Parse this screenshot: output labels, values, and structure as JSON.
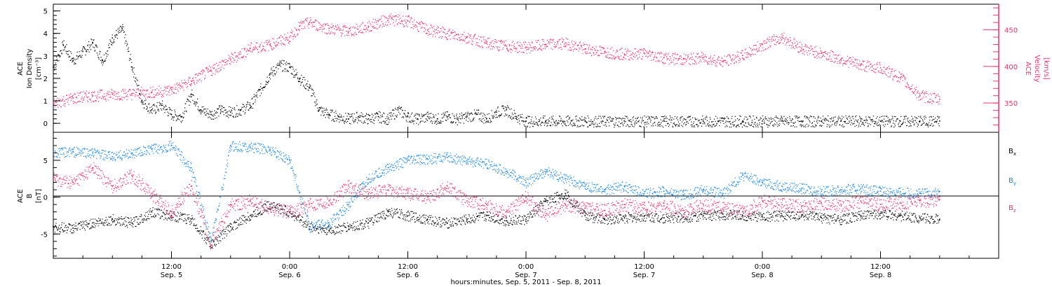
{
  "colors": {
    "black": "#000000",
    "magenta": "#e8336b",
    "blue": "#1a86e0"
  },
  "chart_data": [
    {
      "type": "scatter",
      "panel": "top",
      "xlabel": "hours:minutes, Sep.  5, 2011 - Sep.  8, 2011",
      "xlim_hours": [
        0,
        96
      ],
      "x_ticks": [
        {
          "hour": 12,
          "time": "12:00",
          "date": "Sep. 5"
        },
        {
          "hour": 24,
          "time": "0:00",
          "date": "Sep. 6"
        },
        {
          "hour": 36,
          "time": "12:00",
          "date": "Sep. 6"
        },
        {
          "hour": 48,
          "time": "0:00",
          "date": "Sep. 7"
        },
        {
          "hour": 60,
          "time": "12:00",
          "date": "Sep. 7"
        },
        {
          "hour": 72,
          "time": "0:00",
          "date": "Sep. 8"
        },
        {
          "hour": 84,
          "time": "12:00",
          "date": "Sep. 8"
        }
      ],
      "left_axis": {
        "label_lines": [
          "ACE",
          "Ion Density"
        ],
        "unit": "[cm⁻³]",
        "ylim": [
          -0.4,
          5.3
        ],
        "ticks": [
          "0",
          "1",
          "2",
          "3",
          "4",
          "5"
        ]
      },
      "right_axis": {
        "label_lines": [
          "ACE",
          "Velocity"
        ],
        "unit": "[km/s]",
        "ylim": [
          310,
          485
        ],
        "ticks": [
          "350",
          "400",
          "450"
        ]
      },
      "series": [
        {
          "axis": "left",
          "color": "#000000",
          "x": [
            0,
            1,
            2,
            3,
            4,
            5,
            6,
            7,
            8,
            9,
            10,
            11,
            12,
            13,
            14,
            15,
            16,
            17,
            18,
            19,
            20,
            21,
            22,
            23,
            24,
            25,
            26,
            27,
            28,
            29,
            30,
            31,
            32,
            33,
            34,
            35,
            36,
            37,
            38,
            39,
            40,
            41,
            42,
            43,
            44,
            45,
            46,
            47,
            48,
            50,
            54,
            58,
            62,
            66,
            68,
            70,
            72,
            74,
            76,
            78,
            80,
            82,
            84,
            86,
            88,
            90
          ],
          "y": [
            2.5,
            3.5,
            2.8,
            3.2,
            3.6,
            2.8,
            3.8,
            4.2,
            2.5,
            1.0,
            0.6,
            0.8,
            0.4,
            0.3,
            1.3,
            0.6,
            0.4,
            0.6,
            0.5,
            0.6,
            0.8,
            1.5,
            2.2,
            2.6,
            2.5,
            2.0,
            1.6,
            0.6,
            0.4,
            0.3,
            0.2,
            0.3,
            0.2,
            0.3,
            0.2,
            0.6,
            0.3,
            0.2,
            0.3,
            0.2,
            0.3,
            0.2,
            0.3,
            0.4,
            0.2,
            0.5,
            0.6,
            0.3,
            0.1,
            0.1,
            0.1,
            0.1,
            0.1,
            0.1,
            0.1,
            0.1,
            0.1,
            0.1,
            0.1,
            0.1,
            0.1,
            0.1,
            0.1,
            0.1,
            0.1,
            0.1
          ]
        },
        {
          "axis": "right",
          "color": "#e8336b",
          "x": [
            0,
            2,
            4,
            6,
            8,
            10,
            12,
            14,
            16,
            18,
            20,
            22,
            24,
            25,
            26,
            28,
            30,
            32,
            34,
            36,
            38,
            40,
            42,
            44,
            46,
            48,
            50,
            52,
            54,
            56,
            58,
            60,
            62,
            64,
            66,
            68,
            70,
            72,
            74,
            76,
            78,
            80,
            82,
            84,
            86,
            88,
            90
          ],
          "y": [
            350,
            357,
            360,
            362,
            363,
            365,
            368,
            380,
            395,
            410,
            425,
            430,
            440,
            455,
            460,
            452,
            448,
            455,
            465,
            462,
            450,
            445,
            440,
            432,
            428,
            426,
            430,
            432,
            424,
            420,
            417,
            418,
            412,
            410,
            412,
            407,
            415,
            430,
            440,
            425,
            418,
            410,
            402,
            398,
            385,
            360,
            355
          ]
        }
      ]
    },
    {
      "type": "scatter",
      "panel": "bottom",
      "left_axis": {
        "label_lines": [
          "ACE",
          "B"
        ],
        "unit": "[nT]",
        "ylim": [
          -8.3,
          8.8
        ],
        "ticks": [
          "-5",
          "0",
          "5"
        ]
      },
      "zero_line": true,
      "legend_position": "right",
      "series": [
        {
          "name": "Bx",
          "color": "#000000",
          "x": [
            0,
            2,
            4,
            6,
            8,
            10,
            12,
            14,
            16,
            18,
            20,
            22,
            24,
            26,
            28,
            30,
            32,
            34,
            36,
            38,
            40,
            42,
            44,
            46,
            48,
            50,
            52,
            54,
            56,
            58,
            60,
            62,
            64,
            66,
            68,
            70,
            72,
            74,
            76,
            78,
            80,
            82,
            84,
            86,
            88,
            90
          ],
          "y": [
            -4.0,
            -4.2,
            -3.5,
            -3.0,
            -3.5,
            -2.0,
            -2.5,
            -3.0,
            -6.5,
            -4.0,
            -2.5,
            -1.0,
            -2.0,
            -4.0,
            -4.5,
            -4.0,
            -3.5,
            -2.0,
            -2.5,
            -3.0,
            -3.5,
            -3.0,
            -2.5,
            -3.2,
            -3.0,
            -0.5,
            0.5,
            -2.5,
            -3.0,
            -2.8,
            -2.6,
            -2.8,
            -2.7,
            -2.5,
            -2.3,
            -2.5,
            -2.6,
            -2.5,
            -2.4,
            -2.8,
            -3.0,
            -2.5,
            -2.2,
            -2.5,
            -2.8,
            -3.0
          ]
        },
        {
          "name": "By",
          "color": "#1a86e0",
          "x": [
            0,
            2,
            4,
            6,
            8,
            10,
            12,
            14,
            16,
            18,
            20,
            22,
            24,
            26,
            28,
            30,
            32,
            34,
            36,
            38,
            40,
            42,
            44,
            46,
            48,
            50,
            52,
            54,
            56,
            58,
            60,
            62,
            64,
            66,
            68,
            70,
            72,
            74,
            76,
            78,
            80,
            82,
            84,
            86,
            88,
            90
          ],
          "y": [
            6.0,
            6.2,
            6.0,
            5.5,
            6.0,
            6.5,
            7.0,
            4.0,
            -6.0,
            7.0,
            6.8,
            6.5,
            5.0,
            -4.0,
            -3.5,
            -1.0,
            2.5,
            4.0,
            5.0,
            5.2,
            5.4,
            5.0,
            4.5,
            3.5,
            2.0,
            3.5,
            2.5,
            1.5,
            1.0,
            1.5,
            0.5,
            0.8,
            0.3,
            1.0,
            0.5,
            3.0,
            2.0,
            1.5,
            1.2,
            0.8,
            1.0,
            1.2,
            0.8,
            0.7,
            0.5,
            0.8
          ]
        },
        {
          "name": "Bz",
          "color": "#e8336b",
          "x": [
            0,
            2,
            4,
            6,
            8,
            10,
            12,
            14,
            16,
            18,
            20,
            22,
            24,
            26,
            28,
            30,
            32,
            34,
            36,
            38,
            40,
            42,
            44,
            46,
            48,
            50,
            52,
            54,
            56,
            58,
            60,
            62,
            64,
            66,
            68,
            70,
            72,
            74,
            76,
            78,
            80,
            82,
            84,
            86,
            88,
            90
          ],
          "y": [
            2.5,
            2.0,
            4.0,
            1.5,
            3.0,
            0.5,
            -2.0,
            1.5,
            -6.5,
            -1.0,
            -0.5,
            -1.5,
            -2.0,
            -1.0,
            -0.5,
            1.5,
            0.5,
            1.0,
            0.5,
            0.0,
            1.5,
            -0.5,
            -1.0,
            -2.0,
            0.0,
            -2.5,
            -1.0,
            -1.5,
            -1.8,
            -1.0,
            -1.5,
            -1.2,
            -1.8,
            -1.0,
            -1.5,
            -2.0,
            -0.5,
            -1.0,
            -1.2,
            -0.8,
            -1.2,
            -0.5,
            -1.0,
            -0.8,
            -0.5,
            -0.3
          ]
        }
      ],
      "legend": [
        {
          "base": "B",
          "sub": "x",
          "color": "#000000"
        },
        {
          "base": "B",
          "sub": "y",
          "color": "#1a86e0"
        },
        {
          "base": "B",
          "sub": "z",
          "color": "#e8336b"
        }
      ]
    }
  ]
}
